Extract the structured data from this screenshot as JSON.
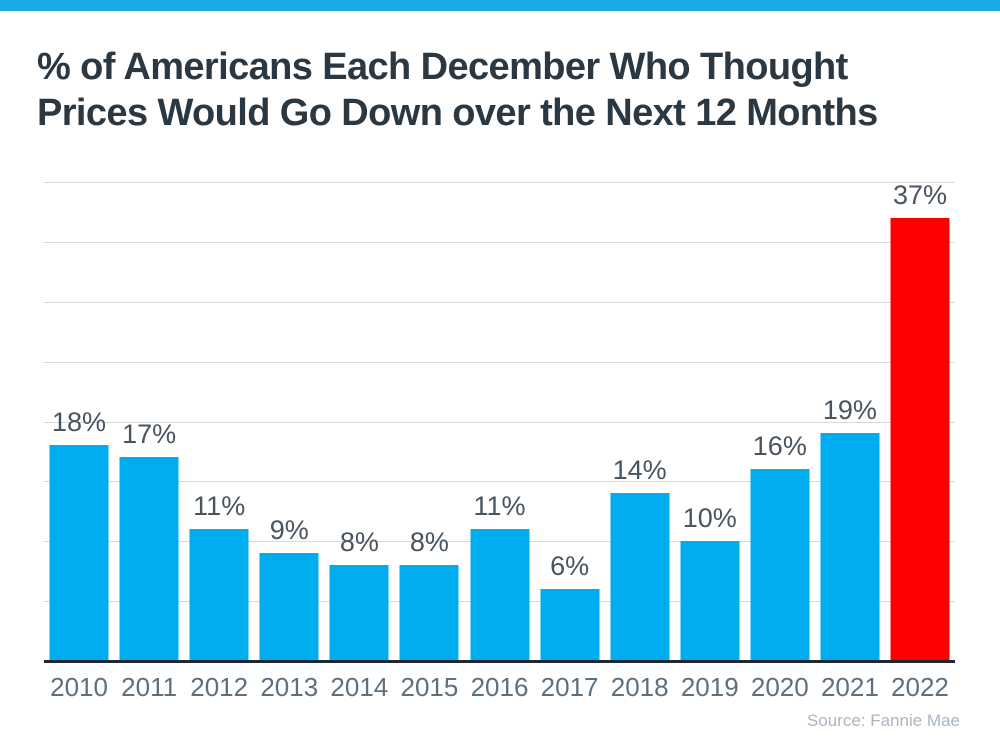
{
  "page": {
    "background_color": "#ffffff",
    "top_strip_color": "#1ca9e8"
  },
  "title": {
    "line1": "% of Americans Each December Who Thought",
    "line2": "Prices Would Go Down over the Next 12 Months",
    "color": "#2b3842"
  },
  "source": {
    "text": "Source: Fannie Mae",
    "color": "#a9b6c2"
  },
  "chart_data": {
    "type": "bar",
    "title": "% of Americans Each December Who Thought Prices Would Go Down over the Next 12 Months",
    "categories": [
      "2010",
      "2011",
      "2012",
      "2013",
      "2014",
      "2015",
      "2016",
      "2017",
      "2018",
      "2019",
      "2020",
      "2021",
      "2022"
    ],
    "values": [
      18,
      17,
      11,
      9,
      8,
      8,
      11,
      6,
      14,
      10,
      16,
      19,
      37
    ],
    "value_labels": [
      "18%",
      "17%",
      "11%",
      "9%",
      "8%",
      "8%",
      "11%",
      "6%",
      "14%",
      "10%",
      "16%",
      "19%",
      "37%"
    ],
    "xlabel": "",
    "ylabel": "",
    "ylim": [
      0,
      40
    ],
    "grid_step": 5,
    "grid_on": true,
    "legend": "none",
    "bar_color": "#00aeef",
    "highlight_index": 12,
    "highlight_color": "#fe0000",
    "value_label_color": "#49545f",
    "tick_label_color": "#5e6f7f",
    "gridline_color": "#d9d9d9",
    "axis_line_color": "#1f2730"
  }
}
